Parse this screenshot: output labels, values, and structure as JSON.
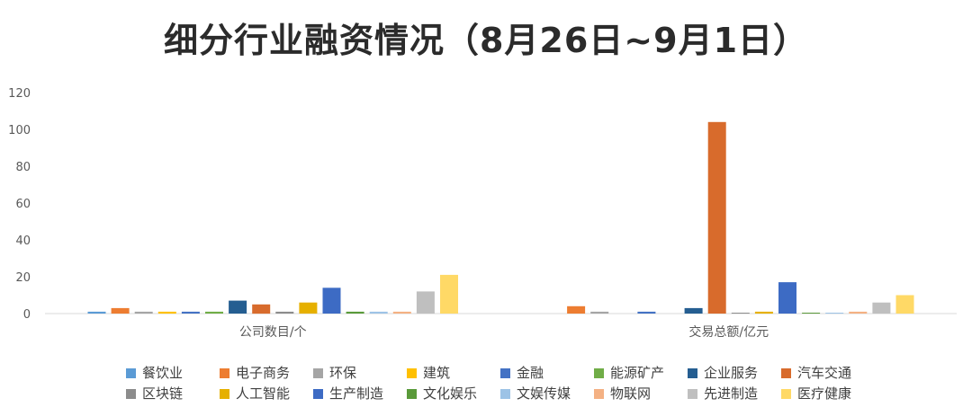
{
  "chart_data": {
    "type": "bar",
    "title": "细分行业融资情况（8月26日~9月1日）",
    "xlabel": "",
    "ylabel": "",
    "ylim": [
      0,
      120
    ],
    "yticks": [
      0,
      20,
      40,
      60,
      80,
      100,
      120
    ],
    "grid": false,
    "legend_position": "bottom",
    "categories": [
      "公司数目/个",
      "交易总额/亿元"
    ],
    "series": [
      {
        "name": "餐饮业",
        "color": "#5b9bd5",
        "values": [
          1,
          0
        ]
      },
      {
        "name": "电子商务",
        "color": "#ed7d31",
        "values": [
          3,
          4
        ]
      },
      {
        "name": "环保",
        "color": "#a5a5a5",
        "values": [
          1,
          1
        ]
      },
      {
        "name": "建筑",
        "color": "#ffc000",
        "values": [
          1,
          0
        ]
      },
      {
        "name": "金融",
        "color": "#4472c4",
        "values": [
          1,
          1
        ]
      },
      {
        "name": "能源矿产",
        "color": "#70ad47",
        "values": [
          1,
          0
        ]
      },
      {
        "name": "企业服务",
        "color": "#255e91",
        "values": [
          7,
          3
        ]
      },
      {
        "name": "汽车交通",
        "color": "#d86b2c",
        "values": [
          5,
          104
        ]
      },
      {
        "name": "区块链",
        "color": "#8c8c8c",
        "values": [
          1,
          0.5
        ]
      },
      {
        "name": "人工智能",
        "color": "#e6b000",
        "values": [
          6,
          1
        ]
      },
      {
        "name": "生产制造",
        "color": "#3d6bc4",
        "values": [
          14,
          17
        ]
      },
      {
        "name": "文化娱乐",
        "color": "#5a9a3a",
        "values": [
          1,
          0.5
        ]
      },
      {
        "name": "文娱传媒",
        "color": "#9dc3e6",
        "values": [
          1,
          0.5
        ]
      },
      {
        "name": "物联网",
        "color": "#f4b183",
        "values": [
          1,
          1
        ]
      },
      {
        "name": "先进制造",
        "color": "#bfbfbf",
        "values": [
          12,
          6
        ]
      },
      {
        "name": "医疗健康",
        "color": "#ffd966",
        "values": [
          21,
          10
        ]
      }
    ]
  }
}
